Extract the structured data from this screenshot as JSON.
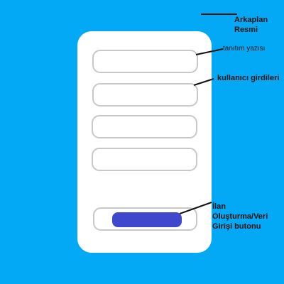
{
  "colors": {
    "background": "#03A9F4",
    "card": "#FFFFFF",
    "field_border": "#C8C8C8",
    "button": "#3F48CC",
    "annotation": "#111111"
  },
  "annotations": {
    "background_image": "Arkaplan Resmi",
    "intro_text": "tanıtım yazısı",
    "user_inputs": "kullanıcı girdileri",
    "submit_button": "İlan Oluşturma/Veri Girişi butonu"
  }
}
